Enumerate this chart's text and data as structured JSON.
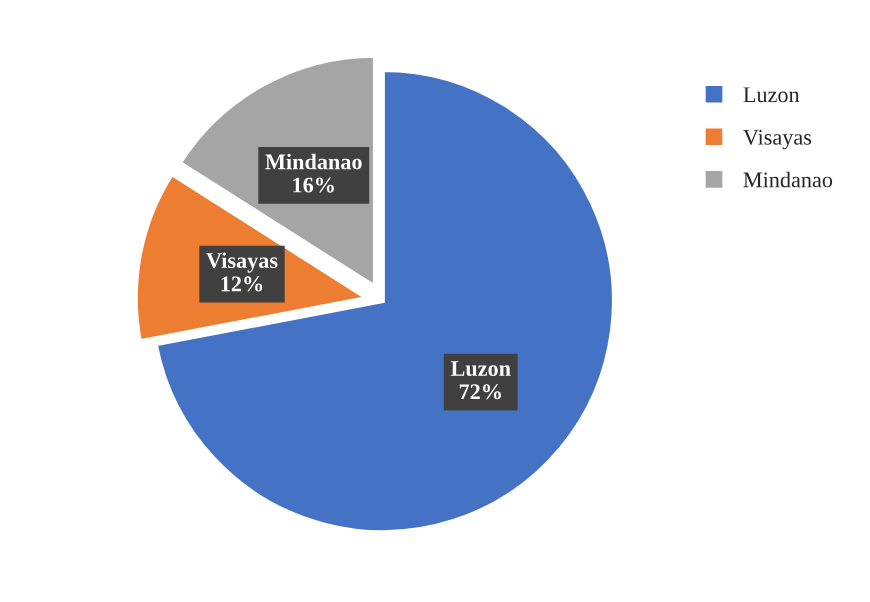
{
  "chart_data": {
    "type": "pie",
    "categories": [
      "Luzon",
      "Visayas",
      "Mindanao"
    ],
    "values": [
      72,
      12,
      16
    ],
    "colors": [
      "#4472c4",
      "#ed7d31",
      "#a5a5a5"
    ],
    "value_labels": [
      "72%",
      "12%",
      "16%"
    ],
    "legend": "right"
  }
}
